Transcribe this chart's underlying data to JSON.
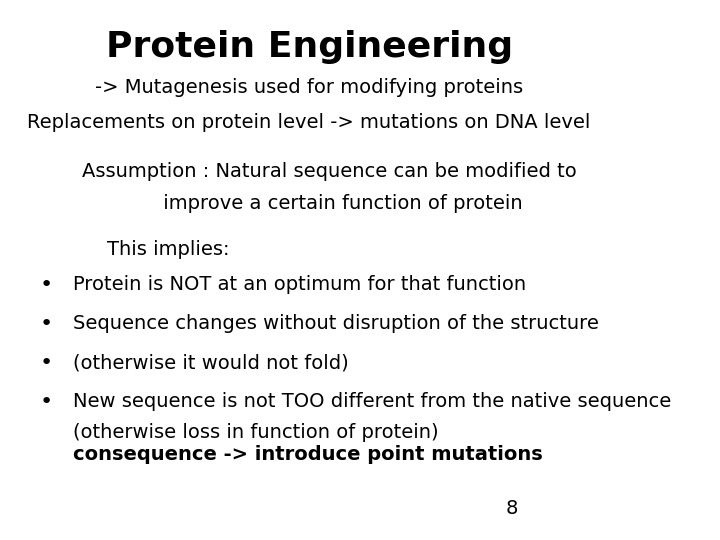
{
  "title": "Protein Engineering",
  "bg_color": "#ffffff",
  "title_fontsize": 26,
  "body_fontsize": 14,
  "small_fontsize": 12,
  "subtitle_lines": [
    "-> Mutagenesis used for modifying proteins",
    "Replacements on protein level -> mutations on DNA level"
  ],
  "assumption_lines": [
    "Assumption : Natural sequence can be modified to",
    "             improve a certain function of protein"
  ],
  "implies_line": "    This implies:",
  "bullet_items": [
    "Protein is NOT at an optimum for that function",
    "Sequence changes without disruption of the structure",
    "(otherwise it would not fold)",
    "New sequence is not TOO different from the native sequence\n    (otherwise loss in function of protein)"
  ],
  "consequence": "consequence -> introduce point mutations",
  "page_number": "8",
  "font_family": "DejaVu Sans"
}
